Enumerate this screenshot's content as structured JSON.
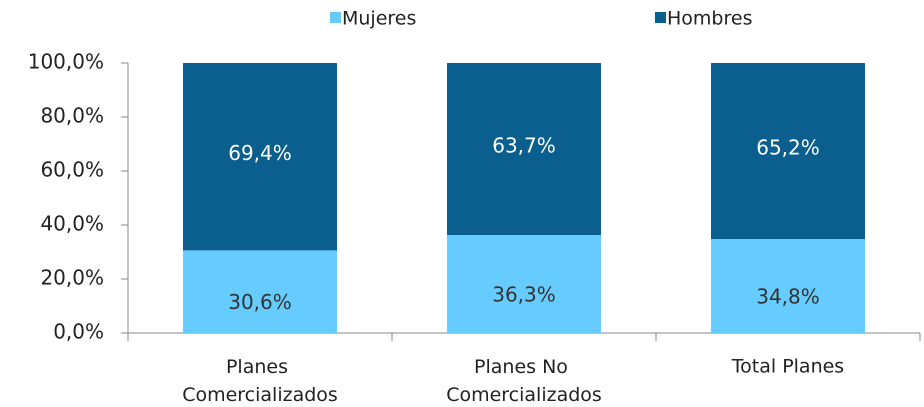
{
  "chart_data": {
    "type": "stacked_bar",
    "categories": [
      "Planes Comercializados",
      "Planes No Comercializados",
      "Total Planes"
    ],
    "series": [
      {
        "name": "Mujeres",
        "color": "#66ccff",
        "values": [
          30.6,
          36.3,
          34.8
        ],
        "value_labels": [
          "30,6%",
          "36,3%",
          "34,8%"
        ]
      },
      {
        "name": "Hombres",
        "color": "#0b5f8e",
        "values": [
          69.4,
          63.7,
          65.2
        ],
        "value_labels": [
          "69,4%",
          "63,7%",
          "65,2%"
        ]
      }
    ],
    "ylim": [
      0,
      100
    ],
    "yticks": [
      {
        "value": 0,
        "label": "0,0%"
      },
      {
        "value": 20,
        "label": "20,0%"
      },
      {
        "value": 40,
        "label": "40,0%"
      },
      {
        "value": 60,
        "label": "60,0%"
      },
      {
        "value": 80,
        "label": "80,0%"
      },
      {
        "value": 100,
        "label": "100,0%"
      }
    ],
    "legend": "top"
  }
}
